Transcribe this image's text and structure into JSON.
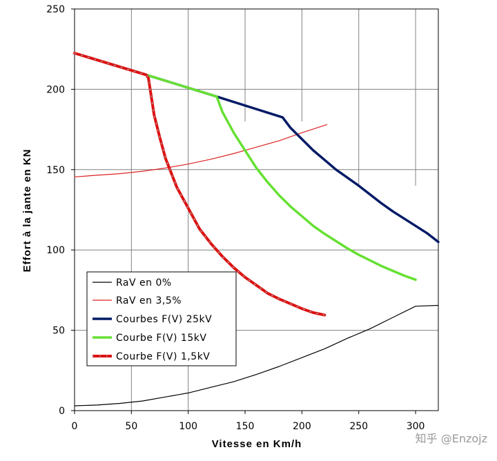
{
  "chart_data": {
    "type": "line",
    "xlabel": "Vitesse en Km/h",
    "ylabel": "Effort à la jante en KN",
    "xlim": [
      0,
      320
    ],
    "ylim": [
      0,
      250
    ],
    "x_ticks": [
      "0",
      "50",
      "100",
      "150",
      "200",
      "250",
      "300"
    ],
    "y_ticks": [
      "0",
      "50",
      "100",
      "150",
      "200",
      "250"
    ],
    "grid": "partial",
    "legend_position": "lower-left",
    "series": [
      {
        "name": "RaV en 0%",
        "color": "#000000",
        "style": "thin",
        "points": [
          [
            0,
            3
          ],
          [
            20,
            3.5
          ],
          [
            40,
            4.5
          ],
          [
            60,
            6
          ],
          [
            80,
            8.5
          ],
          [
            100,
            11
          ],
          [
            120,
            14.5
          ],
          [
            140,
            18
          ],
          [
            160,
            22.5
          ],
          [
            180,
            27.5
          ],
          [
            200,
            33
          ],
          [
            220,
            38.5
          ],
          [
            240,
            45
          ],
          [
            260,
            51
          ],
          [
            280,
            58
          ],
          [
            300,
            65
          ],
          [
            320,
            65.5
          ]
        ]
      },
      {
        "name": "RaV en 3,5%",
        "color": "#dd2222",
        "style": "thin",
        "points": [
          [
            0,
            145.5
          ],
          [
            20,
            146.5
          ],
          [
            40,
            147.5
          ],
          [
            60,
            149
          ],
          [
            80,
            151
          ],
          [
            100,
            153.5
          ],
          [
            120,
            156.5
          ],
          [
            140,
            160
          ],
          [
            160,
            164
          ],
          [
            180,
            168
          ],
          [
            200,
            173
          ],
          [
            222,
            178
          ]
        ]
      },
      {
        "name": "Courbes F(V) 25kV",
        "color": "#001a66",
        "style": "thick",
        "points": [
          [
            0,
            222.5
          ],
          [
            63,
            209
          ],
          [
            125,
            195.5
          ],
          [
            183,
            182.5
          ],
          [
            190,
            176
          ],
          [
            200,
            169
          ],
          [
            210,
            162
          ],
          [
            220,
            156
          ],
          [
            230,
            150
          ],
          [
            240,
            145
          ],
          [
            250,
            140
          ],
          [
            260,
            134.5
          ],
          [
            270,
            129
          ],
          [
            280,
            124
          ],
          [
            290,
            119.5
          ],
          [
            300,
            115
          ],
          [
            310,
            110.5
          ],
          [
            320,
            105
          ]
        ]
      },
      {
        "name": "Courbe F(V) 15kV",
        "color": "#66e033",
        "style": "thick",
        "points": [
          [
            0,
            222.5
          ],
          [
            63,
            209
          ],
          [
            125,
            195.5
          ],
          [
            130,
            186
          ],
          [
            140,
            173
          ],
          [
            150,
            162
          ],
          [
            160,
            151
          ],
          [
            170,
            142
          ],
          [
            180,
            134
          ],
          [
            190,
            127
          ],
          [
            200,
            121
          ],
          [
            210,
            115
          ],
          [
            220,
            110
          ],
          [
            230,
            105.5
          ],
          [
            240,
            101
          ],
          [
            250,
            97
          ],
          [
            260,
            93.5
          ],
          [
            270,
            90
          ],
          [
            280,
            87
          ],
          [
            290,
            84
          ],
          [
            300,
            81.5
          ]
        ]
      },
      {
        "name": "Courbe F(V) 1,5kV",
        "color": "#dd1111",
        "style": "thick-dashed",
        "points": [
          [
            0,
            222.5
          ],
          [
            63,
            209
          ],
          [
            65,
            207
          ],
          [
            70,
            184
          ],
          [
            75,
            170
          ],
          [
            80,
            157
          ],
          [
            85,
            148
          ],
          [
            90,
            139
          ],
          [
            100,
            126
          ],
          [
            110,
            113
          ],
          [
            120,
            104
          ],
          [
            130,
            96
          ],
          [
            140,
            89
          ],
          [
            150,
            83
          ],
          [
            160,
            78
          ],
          [
            170,
            73
          ],
          [
            180,
            69.5
          ],
          [
            190,
            66.5
          ],
          [
            200,
            63.5
          ],
          [
            210,
            61
          ],
          [
            220,
            59.5
          ]
        ]
      }
    ]
  },
  "watermark": "知乎 @Enzojz"
}
